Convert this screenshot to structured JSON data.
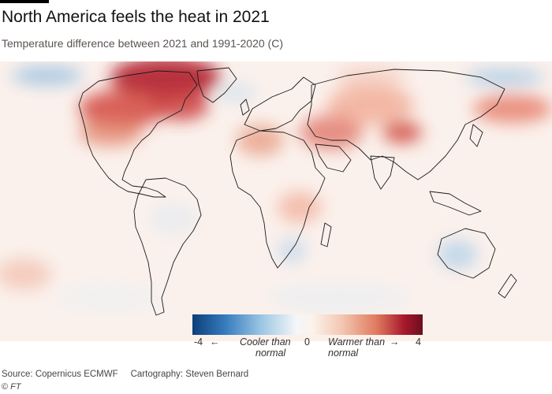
{
  "title": "North America feels the heat in 2021",
  "subtitle": "Temperature difference between 2021 and 1991-2020 (C)",
  "legend": {
    "min_label": "-4",
    "mid_label": "0",
    "max_label": "4",
    "cooler_label_line1": "Cooler than",
    "cooler_label_line2": "normal",
    "warmer_label_line1": "Warmer than",
    "warmer_label_line2": "normal",
    "range": [
      -4,
      4
    ],
    "colors": {
      "cold": "#0b3f7a",
      "neutral": "#fbf3ec",
      "hot": "#6a0f1d"
    }
  },
  "footer": {
    "source": "Source: Copernicus ECMWF",
    "cartography": "Cartography: Steven Bernard",
    "copyright_symbol": "©",
    "copyright_brand": "FT"
  }
}
